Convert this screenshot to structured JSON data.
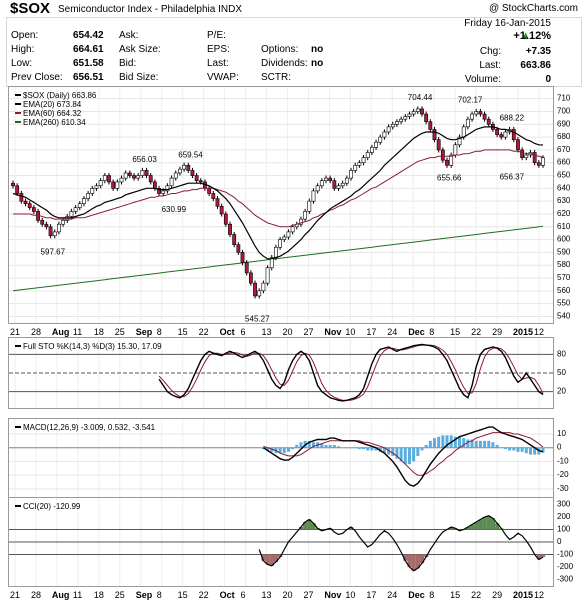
{
  "header": {
    "symbol": "$SOX",
    "name": "Semiconductor Index - Philadelphia INDX",
    "copyright": "@ StockCharts.com"
  },
  "quote": {
    "date": "Friday 16-Jan-2015",
    "open_label": "Open:",
    "open": "654.42",
    "high_label": "High:",
    "high": "664.61",
    "low_label": "Low:",
    "low": "651.58",
    "prev_label": "Prev Close:",
    "prev": "656.51",
    "ask_label": "Ask:",
    "ask_size_label": "Ask Size:",
    "bid_label": "Bid:",
    "bid_size_label": "Bid Size:",
    "pe_label": "P/E:",
    "eps_label": "EPS:",
    "last_label": "Last:",
    "vwap_label": "VWAP:",
    "options_label": "Options:",
    "options": "no",
    "dividends_label": "Dividends:",
    "dividends": "no",
    "sctr_label": "SCTR:",
    "change_pct": "+1.12%",
    "chg_label": "Chg:",
    "chg": "+7.35",
    "last_label2": "Last:",
    "last": "663.86",
    "volume_label": "Volume:",
    "volume": "0"
  },
  "colors": {
    "up": "#ffffff",
    "down": "#b0193c",
    "ema20": "#000000",
    "ema60": "#8b1a3a",
    "ema260": "#1f6e1f",
    "macd_hist": "#5aaedf",
    "cci_pos": "#5c8c52",
    "cci_neg": "#a56a6a",
    "accent_up": "#1f8c1f"
  },
  "chart_data": [
    {
      "type": "candlestick",
      "legend": [
        {
          "label": "$SOX (Daily) 663.86",
          "color": "#000000"
        },
        {
          "label": "EMA(20) 673.84",
          "color": "#000000"
        },
        {
          "label": "EMA(60) 664.32",
          "color": "#8b1a3a"
        },
        {
          "label": "EMA(260) 610.34",
          "color": "#1f6e1f"
        }
      ],
      "ylim": [
        538,
        716
      ],
      "yticks": [
        540,
        550,
        560,
        570,
        580,
        590,
        600,
        610,
        620,
        630,
        640,
        650,
        660,
        670,
        680,
        690,
        700,
        710
      ],
      "annotations": [
        {
          "x": 9,
          "y": 597.67,
          "label": "597.67",
          "pos": "below"
        },
        {
          "x": 31,
          "y": 656.03,
          "label": "656.03",
          "pos": "above"
        },
        {
          "x": 38,
          "y": 630.99,
          "label": "630.99",
          "pos": "below"
        },
        {
          "x": 42,
          "y": 659.54,
          "label": "659.54",
          "pos": "above"
        },
        {
          "x": 58,
          "y": 545.27,
          "label": "545.27",
          "pos": "below"
        },
        {
          "x": 97,
          "y": 704.44,
          "label": "704.44",
          "pos": "above"
        },
        {
          "x": 104,
          "y": 655.66,
          "label": "655.66",
          "pos": "below"
        },
        {
          "x": 109,
          "y": 702.17,
          "label": "702.17",
          "pos": "above"
        },
        {
          "x": 119,
          "y": 688.22,
          "label": "688.22",
          "pos": "above"
        },
        {
          "x": 119,
          "y": 656.37,
          "label": "656.37",
          "pos": "below"
        }
      ],
      "close": [
        642,
        636,
        630,
        628,
        625,
        622,
        615,
        612,
        610,
        603,
        606,
        612,
        615,
        618,
        622,
        625,
        628,
        632,
        636,
        640,
        642,
        646,
        650,
        645,
        640,
        645,
        648,
        652,
        650,
        648,
        650,
        654,
        650,
        645,
        640,
        636,
        638,
        642,
        648,
        652,
        655,
        658,
        654,
        650,
        646,
        645,
        640,
        636,
        632,
        626,
        620,
        612,
        604,
        596,
        590,
        582,
        574,
        566,
        556,
        560,
        566,
        578,
        586,
        594,
        600,
        602,
        606,
        610,
        612,
        616,
        622,
        630,
        638,
        642,
        646,
        648,
        646,
        640,
        642,
        644,
        648,
        654,
        658,
        660,
        664,
        668,
        672,
        676,
        680,
        684,
        688,
        690,
        692,
        694,
        696,
        698,
        700,
        702,
        698,
        692,
        686,
        678,
        670,
        662,
        658,
        666,
        674,
        680,
        688,
        694,
        698,
        700,
        698,
        694,
        690,
        686,
        682,
        680,
        684,
        686,
        678,
        670,
        664,
        666,
        668,
        660,
        658,
        663.86
      ],
      "ema20": [
        636,
        635,
        634,
        633,
        631,
        629,
        627,
        625,
        623,
        620,
        618,
        617,
        617,
        617,
        617,
        618,
        619,
        620,
        622,
        624,
        626,
        627,
        629,
        630,
        631,
        632,
        633,
        635,
        636,
        637,
        638,
        639,
        640,
        640,
        640,
        639,
        639,
        639,
        640,
        641,
        642,
        643,
        644,
        644,
        644,
        644,
        643,
        642,
        640,
        638,
        635,
        632,
        628,
        623,
        618,
        613,
        607,
        601,
        595,
        590,
        587,
        585,
        585,
        586,
        587,
        589,
        591,
        594,
        597,
        600,
        604,
        607,
        611,
        615,
        618,
        621,
        624,
        626,
        628,
        630,
        632,
        634,
        637,
        639,
        642,
        645,
        648,
        651,
        654,
        658,
        661,
        664,
        667,
        670,
        673,
        676,
        679,
        681,
        683,
        684,
        684,
        684,
        683,
        681,
        679,
        678,
        678,
        679,
        680,
        682,
        684,
        686,
        687,
        688,
        688,
        688,
        687,
        686,
        686,
        685,
        684,
        682,
        680,
        678,
        677,
        675,
        674,
        673.84
      ],
      "ema60": [
        620,
        620,
        620,
        620,
        620,
        619,
        619,
        618,
        617,
        617,
        616,
        616,
        616,
        616,
        616,
        617,
        617,
        617,
        618,
        619,
        620,
        621,
        622,
        623,
        624,
        625,
        626,
        627,
        628,
        629,
        630,
        631,
        632,
        633,
        633,
        634,
        634,
        635,
        636,
        636,
        637,
        638,
        638,
        639,
        639,
        640,
        640,
        640,
        640,
        639,
        638,
        637,
        635,
        633,
        630,
        628,
        625,
        622,
        619,
        617,
        615,
        613,
        612,
        611,
        610,
        610,
        610,
        611,
        612,
        613,
        614,
        615,
        617,
        618,
        620,
        621,
        623,
        624,
        626,
        627,
        629,
        631,
        632,
        634,
        636,
        638,
        640,
        641,
        643,
        645,
        647,
        649,
        651,
        653,
        655,
        657,
        659,
        661,
        662,
        663,
        664,
        664,
        665,
        665,
        665,
        665,
        666,
        666,
        667,
        667,
        668,
        669,
        669,
        670,
        670,
        670,
        670,
        670,
        670,
        670,
        669,
        669,
        668,
        667,
        667,
        666,
        665,
        664.32
      ],
      "ema260_range": [
        560,
        610.34
      ]
    },
    {
      "type": "line",
      "legend": "Full STO %K(14,3) %D(3) 15.30, 17.09",
      "ylim": [
        0,
        100
      ],
      "yticks": [
        20,
        50,
        80
      ],
      "k": [
        40,
        30,
        20,
        15,
        12,
        10,
        15,
        25,
        40,
        55,
        70,
        80,
        85,
        82,
        80,
        78,
        82,
        85,
        82,
        78,
        75,
        78,
        82,
        85,
        80,
        70,
        55,
        40,
        30,
        25,
        35,
        55,
        70,
        80,
        85,
        80,
        70,
        50,
        30,
        20,
        15,
        10,
        8,
        6,
        5,
        6,
        8,
        10,
        15,
        25,
        45,
        65,
        80,
        88,
        90,
        92,
        88,
        85,
        88,
        90,
        92,
        94,
        95,
        96,
        95,
        94,
        92,
        88,
        80,
        70,
        55,
        40,
        25,
        15,
        10,
        30,
        60,
        80,
        88,
        90,
        92,
        90,
        85,
        75,
        60,
        45,
        35,
        40,
        50,
        40,
        30,
        20,
        15.3
      ],
      "d": [
        45,
        38,
        30,
        22,
        16,
        12,
        12,
        17,
        27,
        40,
        55,
        68,
        78,
        82,
        82,
        80,
        80,
        82,
        83,
        82,
        79,
        77,
        79,
        82,
        82,
        78,
        68,
        55,
        42,
        32,
        30,
        38,
        53,
        68,
        78,
        82,
        79,
        67,
        50,
        33,
        22,
        15,
        11,
        8,
        6,
        6,
        6,
        8,
        11,
        16,
        28,
        45,
        63,
        78,
        86,
        90,
        90,
        88,
        87,
        88,
        90,
        92,
        94,
        95,
        95,
        95,
        94,
        91,
        87,
        80,
        68,
        55,
        40,
        27,
        17,
        18,
        33,
        57,
        76,
        86,
        90,
        91,
        89,
        83,
        73,
        60,
        47,
        40,
        42,
        43,
        40,
        30,
        17.09
      ]
    },
    {
      "type": "line",
      "legend": "MACD(12,26,9) -3.009, 0.532, -3.541",
      "ylim": [
        -33,
        18
      ],
      "yticks": [
        -30,
        -20,
        -10,
        0,
        10
      ],
      "macd": [
        0,
        -2,
        -4,
        -6,
        -8,
        -9,
        -9,
        -7,
        -4,
        -1,
        2,
        4,
        5,
        6,
        6,
        6,
        7,
        7,
        6,
        5,
        5,
        5,
        5,
        4,
        3,
        2,
        1,
        0,
        -2,
        -4,
        -7,
        -10,
        -14,
        -19,
        -24,
        -27,
        -28,
        -26,
        -22,
        -17,
        -12,
        -8,
        -4,
        -1,
        2,
        4,
        6,
        8,
        9,
        10,
        11,
        12,
        13,
        14,
        15,
        15,
        13,
        11,
        10,
        9,
        8,
        7,
        6,
        4,
        2,
        0,
        -2,
        -3.009
      ],
      "signal": [
        1,
        0,
        -1,
        -2,
        -4,
        -5,
        -6,
        -6,
        -6,
        -5,
        -3,
        -1,
        1,
        2,
        3,
        4,
        5,
        5,
        5,
        5,
        5,
        5,
        5,
        5,
        4,
        4,
        3,
        2,
        1,
        0,
        -2,
        -4,
        -6,
        -9,
        -12,
        -15,
        -18,
        -20,
        -20,
        -19,
        -17,
        -15,
        -12,
        -10,
        -7,
        -5,
        -2,
        0,
        2,
        4,
        5,
        7,
        8,
        9,
        10,
        11,
        11,
        11,
        11,
        11,
        10,
        10,
        9,
        8,
        7,
        5,
        3,
        0.532
      ]
    },
    {
      "type": "line",
      "legend": "CCI(20) -120.99",
      "ylim": [
        -320,
        320
      ],
      "yticks": [
        -300,
        -200,
        -100,
        0,
        100,
        200,
        300
      ],
      "cci": [
        -60,
        -150,
        -180,
        -190,
        -160,
        -120,
        -60,
        0,
        40,
        80,
        120,
        160,
        180,
        150,
        110,
        90,
        100,
        110,
        80,
        60,
        70,
        100,
        120,
        90,
        40,
        0,
        -40,
        -20,
        20,
        60,
        90,
        70,
        30,
        -20,
        -80,
        -150,
        -200,
        -230,
        -210,
        -170,
        -120,
        -60,
        -10,
        40,
        80,
        100,
        120,
        110,
        90,
        100,
        120,
        140,
        160,
        180,
        200,
        210,
        190,
        150,
        110,
        60,
        20,
        40,
        70,
        50,
        10,
        -40,
        -100,
        -140,
        -120.99
      ]
    }
  ],
  "xaxis": {
    "labels": [
      "21",
      "28",
      "Aug",
      "11",
      "18",
      "25",
      "Sep",
      "8",
      "15",
      "22",
      "Oct",
      "6",
      "13",
      "20",
      "27",
      "Nov",
      "10",
      "17",
      "24",
      "Dec",
      "8",
      "15",
      "22",
      "29",
      "2015",
      "12"
    ],
    "bold": [
      "Aug",
      "Sep",
      "Oct",
      "Nov",
      "Dec",
      "2015"
    ]
  }
}
